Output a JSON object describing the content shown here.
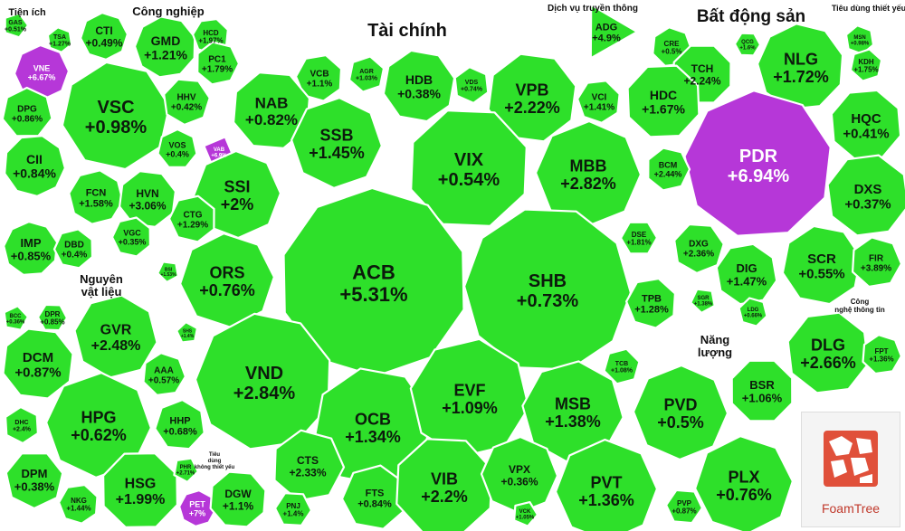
{
  "chart_data": {
    "type": "treemap",
    "colors": {
      "up": "#2ee02a",
      "ceiling": "#b637d8",
      "background": "#ffffff"
    },
    "groups": [
      {
        "name": "Tiện ích",
        "cells": [
          {
            "ticker": "GAS",
            "change": "+0.51%"
          },
          {
            "ticker": "TSA",
            "change": "+1.27%"
          },
          {
            "ticker": "VNE",
            "change": "+6.67%"
          },
          {
            "ticker": "DPG",
            "change": "+0.86%"
          },
          {
            "ticker": "CII",
            "change": "+0.84%"
          },
          {
            "ticker": "IMP",
            "change": "+0.85%"
          },
          {
            "ticker": "DBD",
            "change": "+0.4%"
          }
        ]
      },
      {
        "name": "Công nghiệp",
        "cells": [
          {
            "ticker": "CTI",
            "change": "+0.49%"
          },
          {
            "ticker": "GMD",
            "change": "+1.21%"
          },
          {
            "ticker": "HCD",
            "change": "+1.97%"
          },
          {
            "ticker": "PC1",
            "change": "+1.79%"
          },
          {
            "ticker": "VSC",
            "change": "+0.98%"
          },
          {
            "ticker": "HHV",
            "change": "+0.42%"
          },
          {
            "ticker": "VOS",
            "change": "+0.4%"
          },
          {
            "ticker": "FCN",
            "change": "+1.58%"
          },
          {
            "ticker": "HVN",
            "change": "+3.06%"
          },
          {
            "ticker": "VGC",
            "change": "+0.35%"
          }
        ]
      },
      {
        "name": "Tài chính",
        "cells": [
          {
            "ticker": "VCB",
            "change": "+1.1%"
          },
          {
            "ticker": "AGR",
            "change": "+1.03%"
          },
          {
            "ticker": "HDB",
            "change": "+0.38%"
          },
          {
            "ticker": "VDS",
            "change": "+0.74%"
          },
          {
            "ticker": "VPB",
            "change": "+2.22%"
          },
          {
            "ticker": "VCI",
            "change": "+1.41%"
          },
          {
            "ticker": "NAB",
            "change": "+0.82%"
          },
          {
            "ticker": "SSB",
            "change": "+1.45%"
          },
          {
            "ticker": "VIX",
            "change": "+0.54%"
          },
          {
            "ticker": "MBB",
            "change": "+2.82%"
          },
          {
            "ticker": "VAB",
            "change": "+6.9%"
          },
          {
            "ticker": "SSI",
            "change": "+2%"
          },
          {
            "ticker": "CTG",
            "change": "+1.29%"
          },
          {
            "ticker": "ORS",
            "change": "+0.76%"
          },
          {
            "ticker": "ACB",
            "change": "+5.31%"
          },
          {
            "ticker": "SHB",
            "change": "+0.73%"
          },
          {
            "ticker": "DSE",
            "change": "+1.81%"
          },
          {
            "ticker": "TPB",
            "change": "+1.28%"
          },
          {
            "ticker": "VND",
            "change": "+2.84%"
          },
          {
            "ticker": "OCB",
            "change": "+1.34%"
          },
          {
            "ticker": "EVF",
            "change": "+1.09%"
          },
          {
            "ticker": "TCB",
            "change": "+1.08%"
          },
          {
            "ticker": "MSB",
            "change": "+1.38%"
          },
          {
            "ticker": "CTS",
            "change": "+2.33%"
          },
          {
            "ticker": "FTS",
            "change": "+0.84%"
          },
          {
            "ticker": "VIB",
            "change": "+2.2%"
          },
          {
            "ticker": "VPX",
            "change": "+0.36%"
          },
          {
            "ticker": "VCK",
            "change": "+1.05%"
          },
          {
            "ticker": "BSI",
            "change": "+1.53%"
          },
          {
            "ticker": "SHS",
            "change": "+1.4%"
          }
        ]
      },
      {
        "name": "Dịch vụ truyền thông",
        "cells": [
          {
            "ticker": "ADG",
            "change": "+4.9%"
          }
        ]
      },
      {
        "name": "Bất động sản",
        "cells": [
          {
            "ticker": "CRE",
            "change": "+0.5%"
          },
          {
            "ticker": "QCG",
            "change": "+1.6%"
          },
          {
            "ticker": "TCH",
            "change": "+2.24%"
          },
          {
            "ticker": "NLG",
            "change": "+1.72%"
          },
          {
            "ticker": "HDC",
            "change": "+1.67%"
          },
          {
            "ticker": "PDR",
            "change": "+6.94%"
          },
          {
            "ticker": "HQC",
            "change": "+0.41%"
          },
          {
            "ticker": "BCM",
            "change": "+2.44%"
          },
          {
            "ticker": "DXS",
            "change": "+0.37%"
          },
          {
            "ticker": "DXG",
            "change": "+2.36%"
          },
          {
            "ticker": "DIG",
            "change": "+1.47%"
          },
          {
            "ticker": "SCR",
            "change": "+0.55%"
          },
          {
            "ticker": "FIR",
            "change": "+3.89%"
          },
          {
            "ticker": "LDG",
            "change": "+0.66%"
          },
          {
            "ticker": "SGR",
            "change": "+1.38%"
          }
        ]
      },
      {
        "name": "Tiêu dùng thiết yếu",
        "cells": [
          {
            "ticker": "MSN",
            "change": "+0.98%"
          },
          {
            "ticker": "KDH",
            "change": "+1.75%"
          }
        ]
      },
      {
        "name": "Công nghệ thông tin",
        "cells": [
          {
            "ticker": "DLG",
            "change": "+2.66%"
          },
          {
            "ticker": "FPT",
            "change": "+1.36%"
          }
        ]
      },
      {
        "name": "Nguyên vật liệu",
        "cells": [
          {
            "ticker": "BCC",
            "change": "+0.36%"
          },
          {
            "ticker": "DPR",
            "change": "+0.85%"
          },
          {
            "ticker": "GVR",
            "change": "+2.48%"
          },
          {
            "ticker": "DCM",
            "change": "+0.87%"
          },
          {
            "ticker": "AAA",
            "change": "+0.57%"
          },
          {
            "ticker": "DHC",
            "change": "+2.4%"
          },
          {
            "ticker": "HPG",
            "change": "+0.62%"
          },
          {
            "ticker": "HHP",
            "change": "+0.68%"
          },
          {
            "ticker": "DPM",
            "change": "+0.38%"
          },
          {
            "ticker": "HSG",
            "change": "+1.99%"
          },
          {
            "ticker": "NKG",
            "change": "+1.44%"
          },
          {
            "ticker": "PHR",
            "change": "+2.71%"
          }
        ]
      },
      {
        "name": "Tiêu dùng không thiết yếu",
        "cells": [
          {
            "ticker": "PET",
            "change": "+7%"
          },
          {
            "ticker": "DGW",
            "change": "+1.1%"
          },
          {
            "ticker": "PNJ",
            "change": "+1.4%"
          }
        ]
      },
      {
        "name": "Năng lượng",
        "cells": [
          {
            "ticker": "PVD",
            "change": "+0.5%"
          },
          {
            "ticker": "BSR",
            "change": "+1.06%"
          },
          {
            "ticker": "PVT",
            "change": "+1.36%"
          },
          {
            "ticker": "PVP",
            "change": "+0.87%"
          },
          {
            "ticker": "PLX",
            "change": "+0.76%"
          }
        ]
      }
    ]
  },
  "brand": {
    "label": "FoamTree"
  }
}
